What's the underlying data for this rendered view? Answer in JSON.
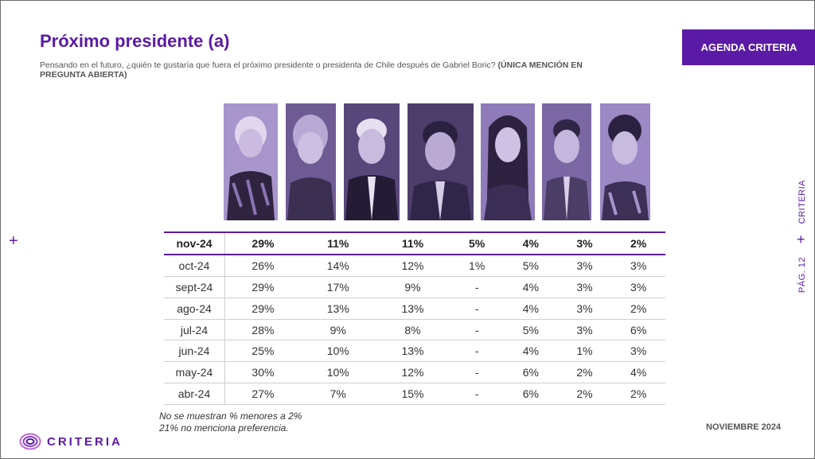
{
  "header": {
    "title": "Próximo presidente (a)",
    "question": "Pensando en el futuro, ¿quién te gustaría que fuera el próximo presidente o presidenta de Chile después de Gabriel Boric?",
    "question_bold": "(ÚNICA MENCIÓN EN PREGUNTA ABIERTA)",
    "badge": "AGENDA CRITERIA"
  },
  "side": {
    "brand": "CRITERIA",
    "page": "PÁG. 12"
  },
  "table": {
    "rows": [
      {
        "month": "nov-24",
        "values": [
          "29%",
          "11%",
          "11%",
          "5%",
          "4%",
          "3%",
          "2%"
        ]
      },
      {
        "month": "oct-24",
        "values": [
          "26%",
          "14%",
          "12%",
          "1%",
          "5%",
          "3%",
          "3%"
        ]
      },
      {
        "month": "sept-24",
        "values": [
          "29%",
          "17%",
          "9%",
          "-",
          "4%",
          "3%",
          "3%"
        ]
      },
      {
        "month": "ago-24",
        "values": [
          "29%",
          "13%",
          "13%",
          "-",
          "4%",
          "3%",
          "2%"
        ]
      },
      {
        "month": "jul-24",
        "values": [
          "28%",
          "9%",
          "8%",
          "-",
          "5%",
          "3%",
          "6%"
        ]
      },
      {
        "month": "jun-24",
        "values": [
          "25%",
          "10%",
          "13%",
          "-",
          "4%",
          "1%",
          "3%"
        ]
      },
      {
        "month": "may-24",
        "values": [
          "30%",
          "10%",
          "12%",
          "-",
          "6%",
          "2%",
          "4%"
        ]
      },
      {
        "month": "abr-24",
        "values": [
          "27%",
          "7%",
          "15%",
          "-",
          "6%",
          "2%",
          "2%"
        ]
      }
    ]
  },
  "notes": {
    "line1": "No se muestran % menores a 2%",
    "line2": "21% no menciona preferencia."
  },
  "footer": {
    "brand": "CRITERIA",
    "date": "NOVIEMBRE 2024"
  },
  "colors": {
    "brand_purple": "#5a1aa5",
    "photo_tint": "#9d86c6"
  }
}
